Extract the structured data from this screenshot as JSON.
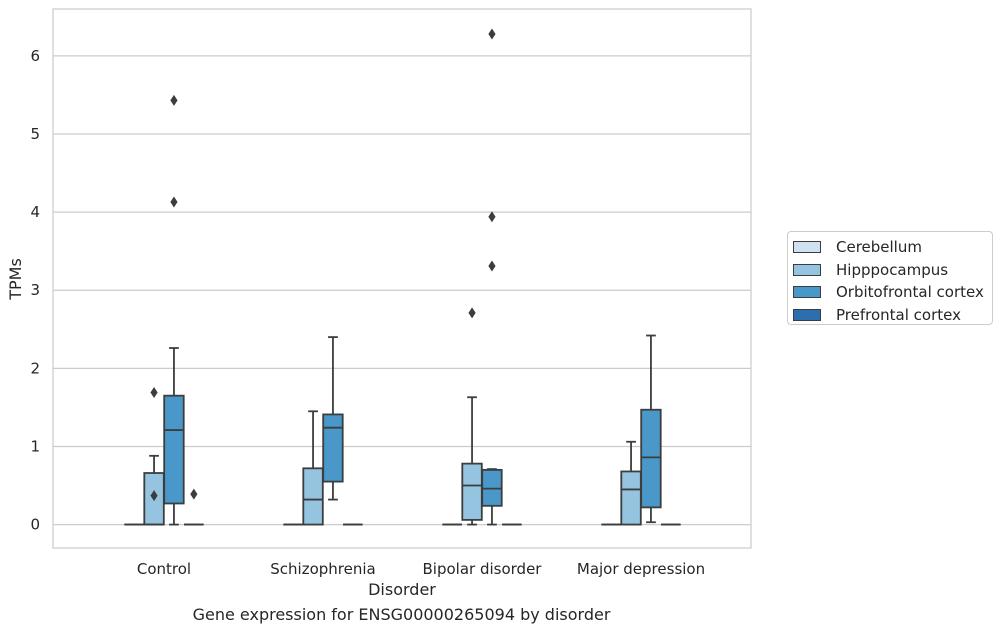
{
  "chart_data": {
    "type": "box",
    "title": "Gene expression for ENSG00000265094 by disorder",
    "xlabel": "Disorder",
    "ylabel": "TPMs",
    "ylim": [
      -0.3,
      6.6
    ],
    "yticks": [
      0,
      1,
      2,
      3,
      4,
      5,
      6
    ],
    "grid": "horizontal",
    "legend_position": "right",
    "categories": [
      "Control",
      "Schizophrenia",
      "Bipolar disorder",
      "Major depression"
    ],
    "series": [
      {
        "name": "Cerebellum",
        "color": "#d0e1f2",
        "boxes": [
          {
            "min": 0,
            "q1": 0,
            "median": 0,
            "q3": 0,
            "max": 0,
            "outliers": []
          },
          {
            "min": 0,
            "q1": 0,
            "median": 0,
            "q3": 0,
            "max": 0,
            "outliers": []
          },
          {
            "min": 0,
            "q1": 0,
            "median": 0,
            "q3": 0,
            "max": 0,
            "outliers": []
          },
          {
            "min": 0,
            "q1": 0,
            "median": 0,
            "q3": 0,
            "max": 0,
            "outliers": []
          }
        ]
      },
      {
        "name": "Hipppocampus",
        "color": "#94c4df",
        "boxes": [
          {
            "min": 0,
            "q1": 0,
            "median": 0,
            "q3": 0.66,
            "max": 0.88,
            "outliers": [
              0.37,
              1.69
            ]
          },
          {
            "min": 0,
            "q1": 0,
            "median": 0.32,
            "q3": 0.72,
            "max": 1.45,
            "outliers": []
          },
          {
            "min": 0,
            "q1": 0.06,
            "median": 0.5,
            "q3": 0.78,
            "max": 1.63,
            "outliers": [
              2.71
            ]
          },
          {
            "min": 0,
            "q1": 0,
            "median": 0.45,
            "q3": 0.68,
            "max": 1.06,
            "outliers": []
          }
        ]
      },
      {
        "name": "Orbitofrontal cortex",
        "color": "#4a98c9",
        "boxes": [
          {
            "min": 0,
            "q1": 0.27,
            "median": 1.21,
            "q3": 1.65,
            "max": 2.26,
            "outliers": [
              4.13,
              5.43
            ]
          },
          {
            "min": 0.32,
            "q1": 0.55,
            "median": 1.24,
            "q3": 1.41,
            "max": 2.4,
            "outliers": []
          },
          {
            "min": 0,
            "q1": 0.24,
            "median": 0.46,
            "q3": 0.7,
            "max": 0.71,
            "outliers": [
              3.31,
              3.94,
              6.28
            ]
          },
          {
            "min": 0.03,
            "q1": 0.22,
            "median": 0.86,
            "q3": 1.47,
            "max": 2.42,
            "outliers": []
          }
        ]
      },
      {
        "name": "Prefrontal cortex",
        "color": "#2d6fae",
        "boxes": [
          {
            "min": 0,
            "q1": 0,
            "median": 0,
            "q3": 0,
            "max": 0,
            "outliers": [
              0.39
            ]
          },
          {
            "min": 0,
            "q1": 0,
            "median": 0,
            "q3": 0,
            "max": 0,
            "outliers": []
          },
          {
            "min": 0,
            "q1": 0,
            "median": 0,
            "q3": 0,
            "max": 0,
            "outliers": []
          },
          {
            "min": 0,
            "q1": 0,
            "median": 0,
            "q3": 0,
            "max": 0,
            "outliers": []
          }
        ]
      }
    ]
  }
}
